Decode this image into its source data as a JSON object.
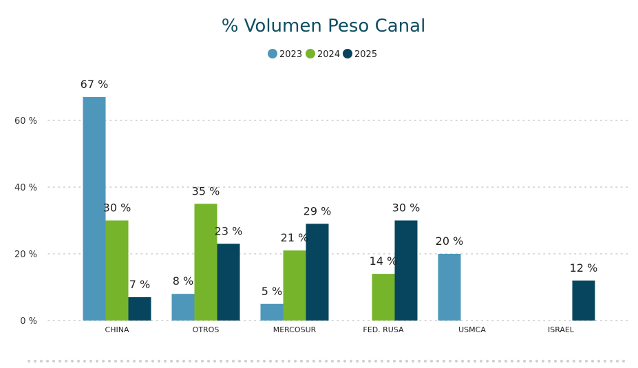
{
  "chart_data": {
    "type": "bar",
    "title": "% Volumen Peso Canal",
    "categories": [
      "CHINA",
      "OTROS",
      "MERCOSUR",
      "FED. RUSA",
      "USMCA",
      "ISRAEL"
    ],
    "series": [
      {
        "name": "2023",
        "color": "#4e97bb",
        "values": [
          67,
          8,
          5,
          null,
          20,
          null
        ],
        "labels": [
          "67 %",
          "8 %",
          "5 %",
          "",
          "20 %",
          ""
        ]
      },
      {
        "name": "2024",
        "color": "#76b52b",
        "values": [
          30,
          35,
          21,
          14,
          null,
          null
        ],
        "labels": [
          "30 %",
          "35 %",
          "21 %",
          "14 %",
          "",
          ""
        ]
      },
      {
        "name": "2025",
        "color": "#06455d",
        "values": [
          7,
          23,
          29,
          30,
          null,
          12
        ],
        "labels": [
          "7 %",
          "23 %",
          "29 %",
          "30 %",
          "",
          "12 %"
        ]
      }
    ],
    "yticks": [
      0,
      20,
      40,
      60
    ],
    "ytick_labels": [
      "0 %",
      "20 %",
      "40 %",
      "60 %"
    ],
    "ylim": [
      0,
      74
    ],
    "grid": true,
    "legend_position": "top-center",
    "title_color": "#0e4e60"
  }
}
